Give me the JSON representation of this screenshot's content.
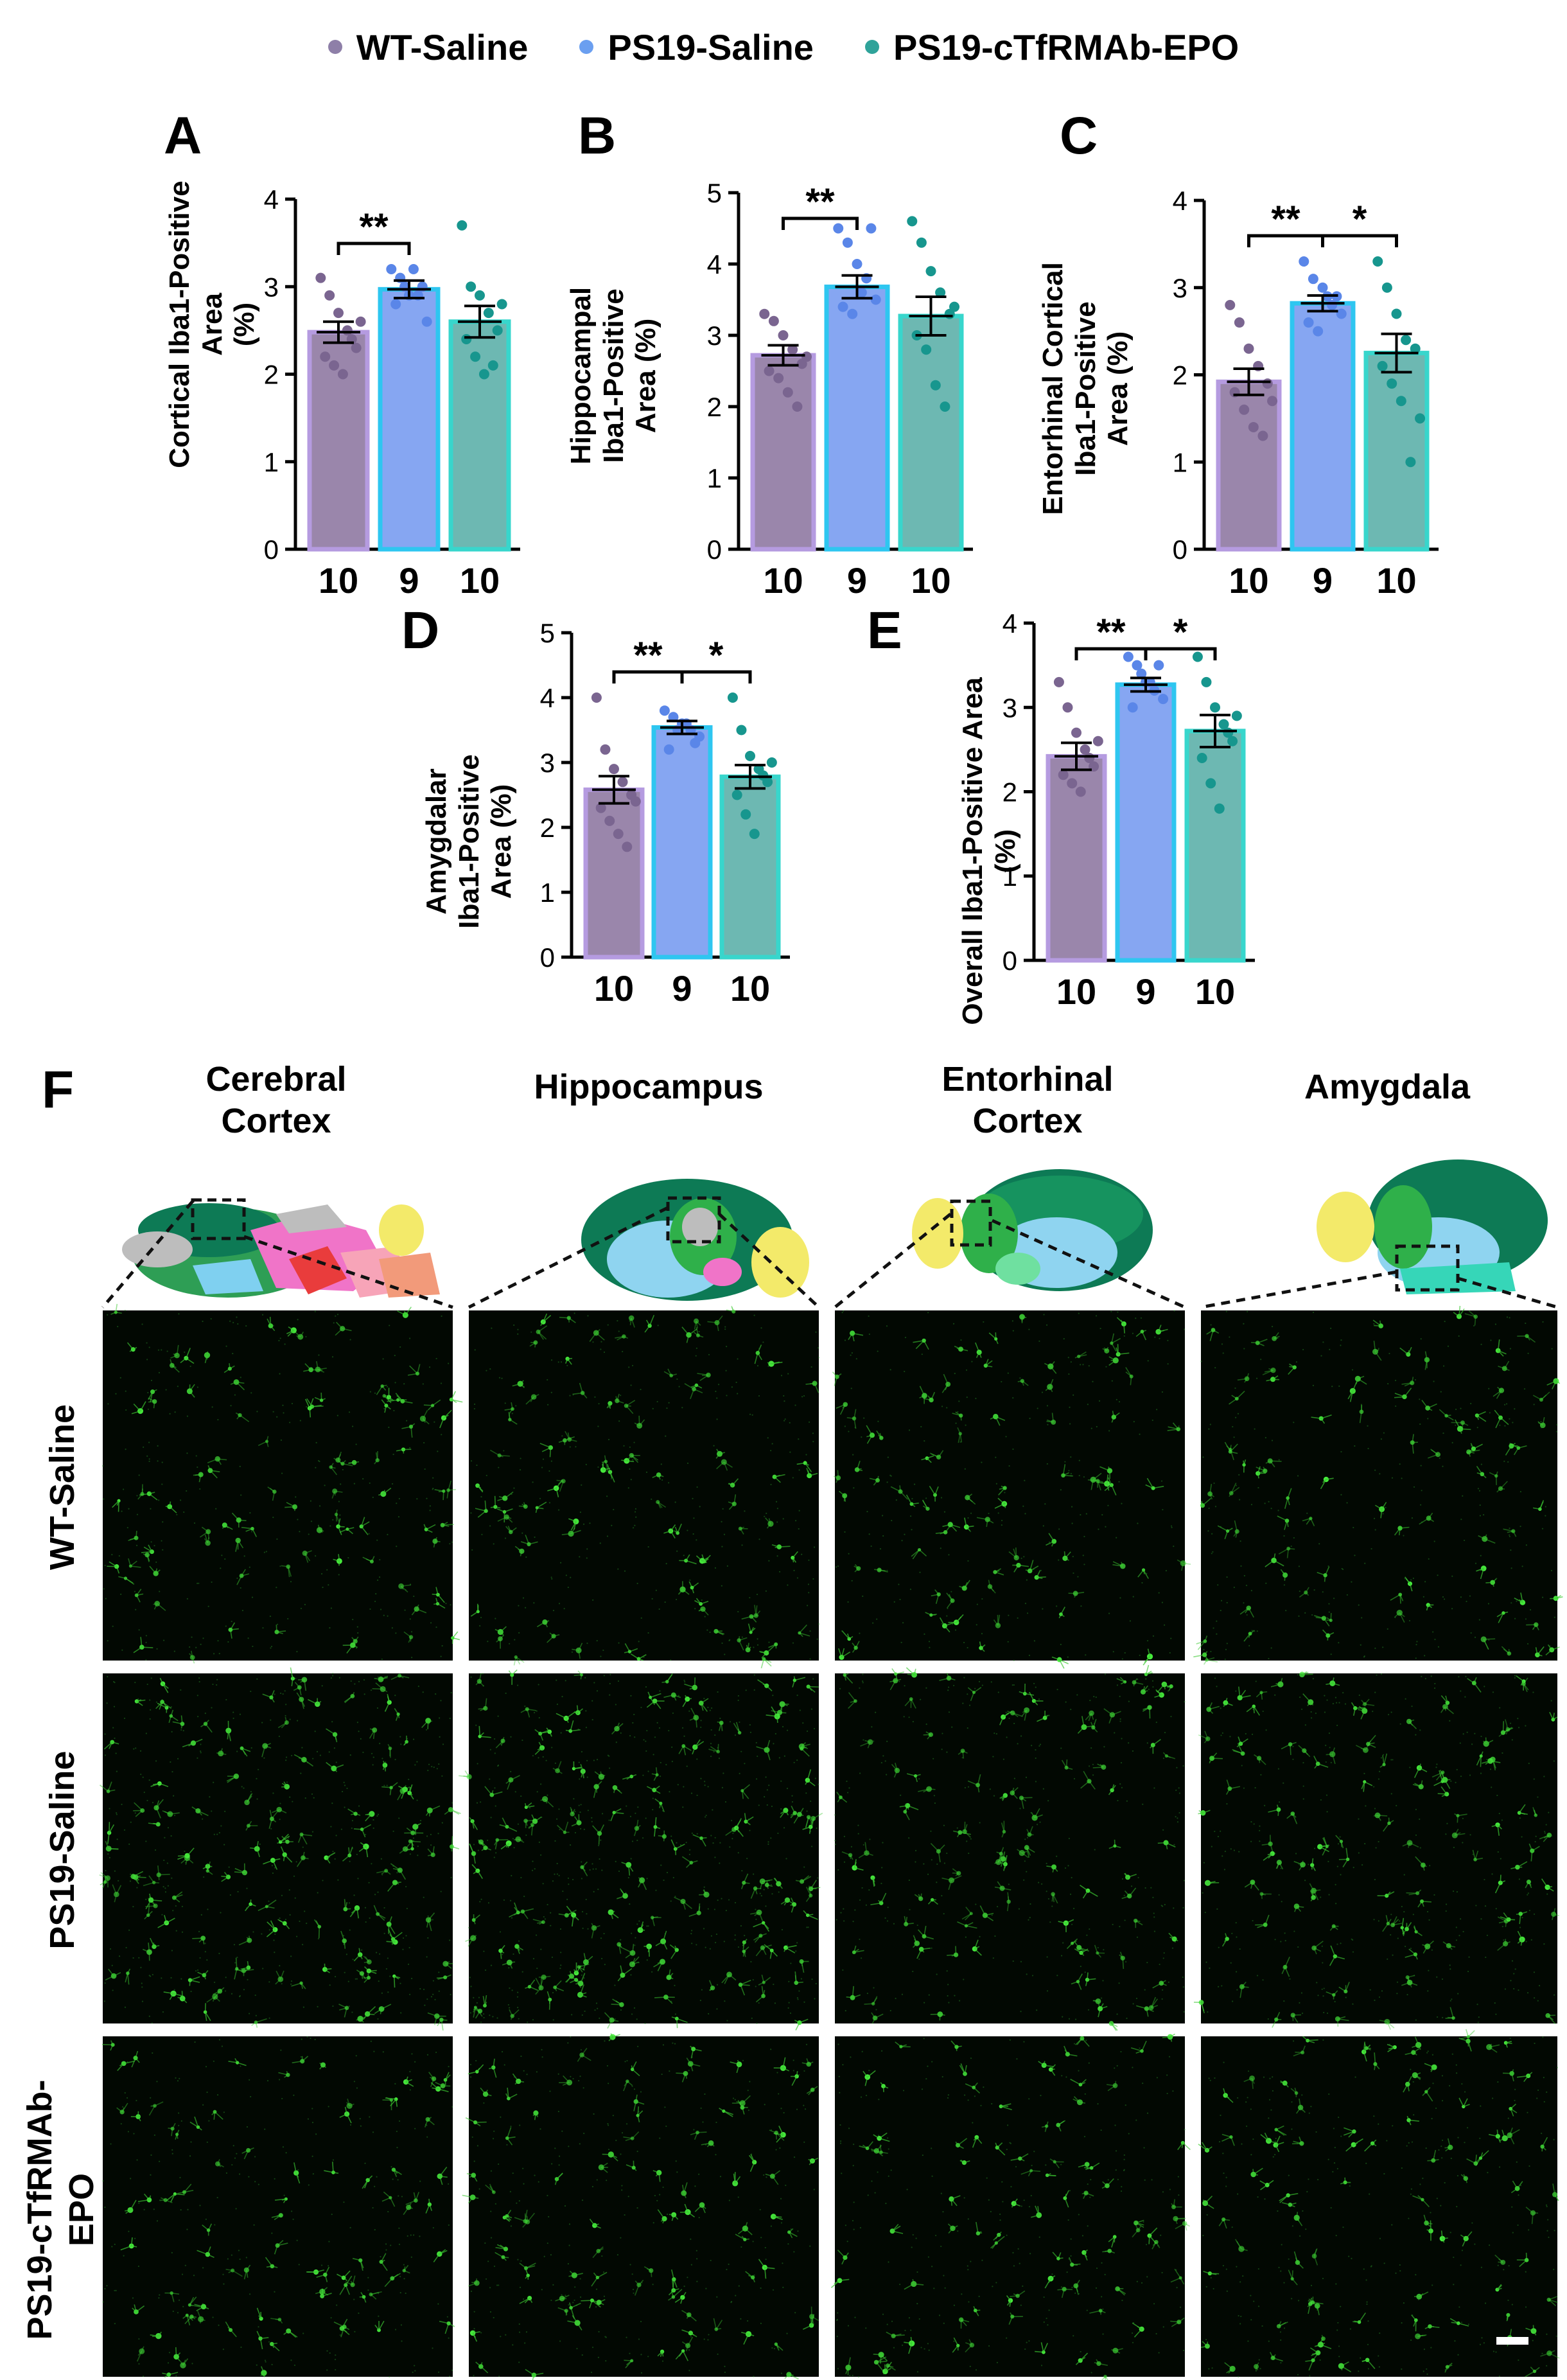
{
  "legend": [
    {
      "label": "WT-Saline",
      "color": "#8e7fa8"
    },
    {
      "label": "PS19-Saline",
      "color": "#6b9ff0"
    },
    {
      "label": "PS19-cTfRMAb-EPO",
      "color": "#2fa39a"
    }
  ],
  "colors": {
    "bars": [
      "#9a86ab",
      "#86a6f2",
      "#6db8b2"
    ],
    "edges": [
      "#b59be0",
      "#2ec6f0",
      "#38d6cc"
    ],
    "dots": [
      "#7a6590",
      "#5a86e8",
      "#17968e"
    ]
  },
  "chart_data": [
    {
      "panel": "A",
      "type": "bar",
      "ylabel": "Cortical Iba1-Positive Area (%)",
      "ylabel_lines": [
        "Cortical Iba1-Positive",
        "Area",
        "(%)"
      ],
      "categories": [
        "10",
        "9",
        "10"
      ],
      "ylim": [
        0,
        4
      ],
      "yticks": [
        "0",
        "1",
        "2",
        "3",
        "4"
      ],
      "values": [
        2.48,
        2.97,
        2.6
      ],
      "sem": [
        0.12,
        0.1,
        0.18
      ],
      "points": [
        [
          3.1,
          2.9,
          2.7,
          2.5,
          2.3,
          2.2,
          2.1,
          2.0,
          2.4,
          2.6
        ],
        [
          3.2,
          3.1,
          2.9,
          2.9,
          2.6,
          2.8,
          3.0,
          3.2,
          3.0
        ],
        [
          3.7,
          3.0,
          2.9,
          2.7,
          2.5,
          2.4,
          2.2,
          2.0,
          2.1,
          2.8
        ]
      ],
      "significance": [
        {
          "from": 0,
          "to": 1,
          "label": "**"
        }
      ]
    },
    {
      "panel": "B",
      "type": "bar",
      "ylabel": "Hippocampal Iba1-Positive Area (%)",
      "ylabel_lines": [
        "Hippocampal",
        "Iba1-Positive",
        "Area (%)"
      ],
      "categories": [
        "10",
        "9",
        "10"
      ],
      "ylim": [
        0,
        5
      ],
      "yticks": [
        "0",
        "1",
        "2",
        "3",
        "4",
        "5"
      ],
      "values": [
        2.72,
        3.68,
        3.27
      ],
      "sem": [
        0.14,
        0.16,
        0.27
      ],
      "points": [
        [
          3.3,
          3.2,
          3.0,
          2.8,
          2.6,
          2.5,
          2.4,
          2.2,
          2.0,
          2.7
        ],
        [
          4.5,
          4.3,
          4.0,
          3.8,
          3.5,
          3.4,
          3.3,
          3.6,
          4.5
        ],
        [
          4.6,
          4.3,
          3.9,
          3.6,
          3.3,
          3.0,
          2.8,
          2.3,
          2.0,
          3.4
        ]
      ],
      "significance": [
        {
          "from": 0,
          "to": 1,
          "label": "**"
        }
      ]
    },
    {
      "panel": "C",
      "type": "bar",
      "ylabel": "Entorhinal Cortical Iba1-Positive Area (%)",
      "ylabel_lines": [
        "Entorhinal Cortical",
        "Iba1-Positive",
        "Area (%)"
      ],
      "categories": [
        "10",
        "9",
        "10"
      ],
      "ylim": [
        0,
        4
      ],
      "yticks": [
        "0",
        "1",
        "2",
        "3",
        "4"
      ],
      "values": [
        1.92,
        2.82,
        2.25
      ],
      "sem": [
        0.15,
        0.09,
        0.22
      ],
      "points": [
        [
          2.8,
          2.6,
          2.3,
          2.1,
          1.9,
          1.8,
          1.6,
          1.4,
          1.3,
          1.7
        ],
        [
          3.3,
          3.1,
          3.0,
          2.8,
          2.7,
          2.6,
          2.5,
          2.9,
          2.9
        ],
        [
          3.3,
          3.0,
          2.7,
          2.4,
          2.3,
          2.1,
          1.9,
          1.7,
          1.0,
          1.5
        ]
      ],
      "significance": [
        {
          "from": 0,
          "to": 1,
          "label": "**"
        },
        {
          "from": 1,
          "to": 2,
          "label": "*"
        }
      ]
    },
    {
      "panel": "D",
      "type": "bar",
      "ylabel": "Amygdalar Iba1-Positive Area (%)",
      "ylabel_lines": [
        "Amygdalar",
        "Iba1-Positive",
        "Area (%)"
      ],
      "categories": [
        "10",
        "9",
        "10"
      ],
      "ylim": [
        0,
        5
      ],
      "yticks": [
        "0",
        "1",
        "2",
        "3",
        "4",
        "5"
      ],
      "values": [
        2.58,
        3.54,
        2.78
      ],
      "sem": [
        0.21,
        0.1,
        0.18
      ],
      "points": [
        [
          4.0,
          3.2,
          2.9,
          2.7,
          2.5,
          2.3,
          2.1,
          1.9,
          1.7,
          2.4
        ],
        [
          3.8,
          3.7,
          3.6,
          3.5,
          3.4,
          3.2,
          3.5,
          3.6,
          3.3
        ],
        [
          4.0,
          3.5,
          3.1,
          2.9,
          2.7,
          2.5,
          2.2,
          1.9,
          2.8,
          3.0
        ]
      ],
      "significance": [
        {
          "from": 0,
          "to": 1,
          "label": "**"
        },
        {
          "from": 1,
          "to": 2,
          "label": "*"
        }
      ]
    },
    {
      "panel": "E",
      "type": "bar",
      "ylabel": "Overall Iba1-Positive Area (%)",
      "ylabel_lines": [
        "Overall Iba1-Positive Area",
        "(%)"
      ],
      "categories": [
        "10",
        "9",
        "10"
      ],
      "ylim": [
        0,
        4
      ],
      "yticks": [
        "0",
        "1",
        "2",
        "3",
        "4"
      ],
      "values": [
        2.42,
        3.27,
        2.72
      ],
      "sem": [
        0.16,
        0.08,
        0.19
      ],
      "points": [
        [
          3.3,
          3.0,
          2.7,
          2.5,
          2.3,
          2.2,
          2.1,
          2.0,
          2.4,
          2.6
        ],
        [
          3.6,
          3.5,
          3.3,
          3.2,
          3.1,
          3.0,
          3.4,
          3.3,
          3.5
        ],
        [
          3.6,
          3.3,
          3.0,
          2.8,
          2.6,
          2.4,
          2.1,
          1.8,
          2.7,
          2.9
        ]
      ],
      "significance": [
        {
          "from": 0,
          "to": 1,
          "label": "**"
        },
        {
          "from": 1,
          "to": 2,
          "label": "*"
        }
      ]
    }
  ],
  "panel_f": {
    "letter": "F",
    "columns": [
      "Cerebral\nCortex",
      "Hippocampus",
      "Entorhinal\nCortex",
      "Amygdala"
    ],
    "rows": [
      "WT-Saline",
      "PS19-Saline",
      "PS19-cTfRMAb-\nEPO"
    ],
    "density": [
      [
        1.0,
        1.0,
        0.9,
        0.95
      ],
      [
        1.5,
        1.7,
        1.1,
        1.2
      ],
      [
        0.9,
        1.0,
        0.9,
        1.0
      ]
    ]
  }
}
